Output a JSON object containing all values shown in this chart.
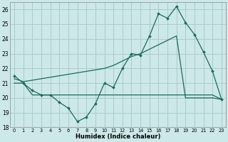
{
  "xlabel": "Humidex (Indice chaleur)",
  "xlim": [
    -0.5,
    23.5
  ],
  "ylim": [
    18,
    26.5
  ],
  "yticks": [
    18,
    19,
    20,
    21,
    22,
    23,
    24,
    25,
    26
  ],
  "xticks": [
    0,
    1,
    2,
    3,
    4,
    5,
    6,
    7,
    8,
    9,
    10,
    11,
    12,
    13,
    14,
    15,
    16,
    17,
    18,
    19,
    20,
    21,
    22,
    23
  ],
  "bg_color": "#cce8e8",
  "grid_color": "#aacccc",
  "line_color": "#1a6b5a",
  "line1_x": [
    0,
    1,
    2,
    3,
    4,
    5,
    6,
    7,
    8,
    9,
    10,
    11,
    12,
    13,
    14,
    15,
    16,
    17,
    18,
    19,
    20,
    21,
    22,
    23
  ],
  "line1_y": [
    21.5,
    21.0,
    20.5,
    20.2,
    20.2,
    19.7,
    19.3,
    18.4,
    18.7,
    19.6,
    21.0,
    20.7,
    22.0,
    23.0,
    22.9,
    24.2,
    25.7,
    25.4,
    26.2,
    25.1,
    24.3,
    23.1,
    21.8,
    19.9
  ],
  "line2_x": [
    0,
    1,
    2,
    3,
    4,
    5,
    6,
    7,
    8,
    9,
    10,
    11,
    12,
    13,
    14,
    15,
    16,
    17,
    18,
    19,
    20,
    21,
    22,
    23
  ],
  "line2_y": [
    21.0,
    21.0,
    20.2,
    20.2,
    20.2,
    20.2,
    20.2,
    20.2,
    20.2,
    20.2,
    20.2,
    20.2,
    20.2,
    20.2,
    20.2,
    20.2,
    20.2,
    20.2,
    20.2,
    20.2,
    20.2,
    20.2,
    20.2,
    19.9
  ],
  "line3_x": [
    0,
    1,
    2,
    3,
    4,
    5,
    6,
    7,
    8,
    9,
    10,
    11,
    12,
    13,
    14,
    15,
    16,
    17,
    18,
    19,
    20,
    21,
    22,
    23
  ],
  "line3_y": [
    21.3,
    21.1,
    21.2,
    21.3,
    21.4,
    21.5,
    21.6,
    21.7,
    21.8,
    21.9,
    22.0,
    22.2,
    22.5,
    22.8,
    23.0,
    23.3,
    23.6,
    23.9,
    24.2,
    20.0,
    20.0,
    20.0,
    20.0,
    19.9
  ]
}
